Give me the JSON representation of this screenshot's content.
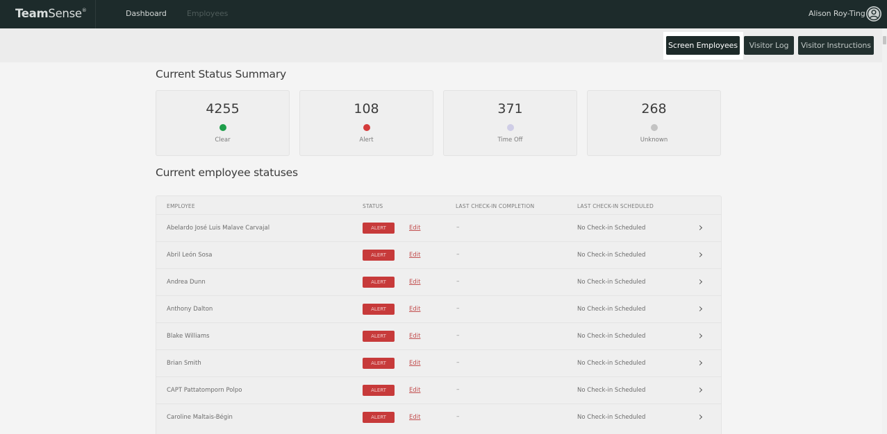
{
  "topbar": {
    "brand_main": "Team",
    "brand_rest": "Sense",
    "brand_mark": "®",
    "nav": [
      {
        "label": "Dashboard",
        "active": true
      },
      {
        "label": "Employees",
        "active": false
      }
    ],
    "user_name": "Alison Roy-Ting",
    "user_icon": "user-circle-icon"
  },
  "actions": {
    "screen_employees": "Screen Employees",
    "visitor_log": "Visitor Log",
    "visitor_instructions": "Visitor Instructions"
  },
  "summary": {
    "title": "Current Status Summary",
    "cards": [
      {
        "count": "4255",
        "label": "Clear",
        "color": "#1e9e4a"
      },
      {
        "count": "108",
        "label": "Alert",
        "color": "#d43b3b"
      },
      {
        "count": "371",
        "label": "Time Off",
        "color": "#cfcde6"
      },
      {
        "count": "268",
        "label": "Unknown",
        "color": "#c3c3c3"
      }
    ]
  },
  "statuses": {
    "title": "Current employee statuses",
    "columns": {
      "employee": "EMPLOYEE",
      "status": "STATUS",
      "last_completion": "LAST CHECK-IN COMPLETION",
      "last_scheduled": "LAST CHECK-IN SCHEDULED"
    },
    "rows": [
      {
        "name": "Abelardo José Luis Malave Carvajal",
        "status": "ALERT",
        "edit": "Edit",
        "completion": "–",
        "scheduled": "No Check-in Scheduled"
      },
      {
        "name": "Abril León Sosa",
        "status": "ALERT",
        "edit": "Edit",
        "completion": "–",
        "scheduled": "No Check-in Scheduled"
      },
      {
        "name": "Andrea Dunn",
        "status": "ALERT",
        "edit": "Edit",
        "completion": "–",
        "scheduled": "No Check-in Scheduled"
      },
      {
        "name": "Anthony Dalton",
        "status": "ALERT",
        "edit": "Edit",
        "completion": "–",
        "scheduled": "No Check-in Scheduled"
      },
      {
        "name": "Blake Williams",
        "status": "ALERT",
        "edit": "Edit",
        "completion": "–",
        "scheduled": "No Check-in Scheduled"
      },
      {
        "name": "Brian Smith",
        "status": "ALERT",
        "edit": "Edit",
        "completion": "–",
        "scheduled": "No Check-in Scheduled"
      },
      {
        "name": "CAPT Pattatomporn Polpo",
        "status": "ALERT",
        "edit": "Edit",
        "completion": "–",
        "scheduled": "No Check-in Scheduled"
      },
      {
        "name": "Caroline Maltais-Bégin",
        "status": "ALERT",
        "edit": "Edit",
        "completion": "–",
        "scheduled": "No Check-in Scheduled"
      }
    ]
  }
}
